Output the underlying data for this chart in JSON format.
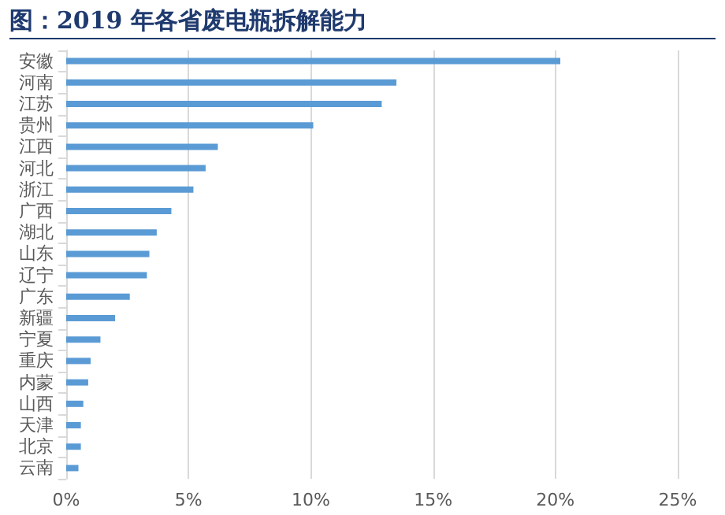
{
  "chart_data": {
    "type": "bar",
    "orientation": "horizontal",
    "title": "图：2019 年各省废电瓶拆解能力",
    "categories": [
      "安徽",
      "河南",
      "江苏",
      "贵州",
      "江西",
      "河北",
      "浙江",
      "广西",
      "湖北",
      "山东",
      "辽宁",
      "广东",
      "新疆",
      "宁夏",
      "重庆",
      "内蒙",
      "山西",
      "天津",
      "北京",
      "云南"
    ],
    "values": [
      20.2,
      13.5,
      12.9,
      10.1,
      6.2,
      5.7,
      5.2,
      4.3,
      3.7,
      3.4,
      3.3,
      2.6,
      2.0,
      1.4,
      1.0,
      0.9,
      0.7,
      0.6,
      0.6,
      0.5
    ],
    "color": "#5b9bd5",
    "xlim": [
      0,
      25
    ],
    "xticks": [
      {
        "value": 0,
        "label": "0%"
      },
      {
        "value": 5,
        "label": "5%"
      },
      {
        "value": 10,
        "label": "10%"
      },
      {
        "value": 15,
        "label": "15%"
      },
      {
        "value": 20,
        "label": "20%"
      },
      {
        "value": 25,
        "label": "25%"
      }
    ],
    "grid": "x"
  }
}
